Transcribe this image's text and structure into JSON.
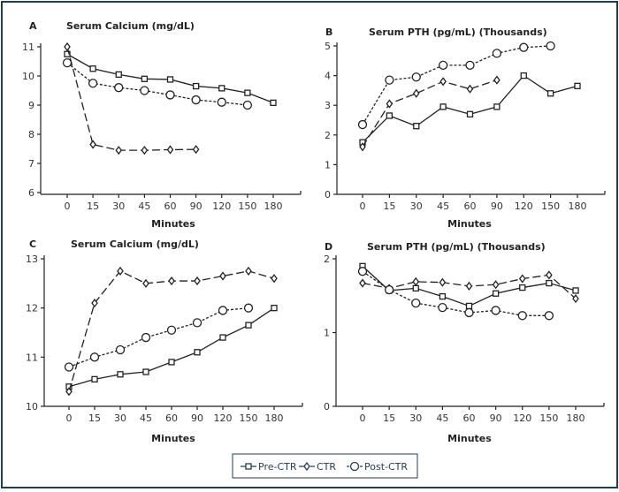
{
  "legend": {
    "items": [
      {
        "label": "Pre-CTR",
        "marker": "square",
        "dash": "solid"
      },
      {
        "label": "CTR",
        "marker": "diamond",
        "dash": "long-dash"
      },
      {
        "label": "Post-CTR",
        "marker": "circle",
        "dash": "short-dash"
      }
    ],
    "placement": "bottom-center"
  },
  "chart_data": [
    {
      "type": "line",
      "panel": "A",
      "title": "Serum Calcium (mg/dL)",
      "xlabel": "Minutes",
      "ylabel": "",
      "categories": [
        "0",
        "15",
        "30",
        "45",
        "60",
        "90",
        "120",
        "150",
        "180"
      ],
      "ylim": [
        6,
        11
      ],
      "yticks": [
        6,
        7,
        8,
        9,
        10,
        11
      ],
      "grid": false,
      "series": [
        {
          "name": "Pre-CTR",
          "values": [
            10.75,
            10.25,
            10.05,
            9.9,
            9.88,
            9.65,
            9.58,
            9.42,
            9.08
          ]
        },
        {
          "name": "CTR",
          "values": [
            11.0,
            7.65,
            7.45,
            7.45,
            7.47,
            7.48,
            null,
            null,
            null
          ]
        },
        {
          "name": "Post-CTR",
          "values": [
            10.45,
            9.75,
            9.6,
            9.5,
            9.35,
            9.18,
            9.1,
            9.0,
            null
          ]
        }
      ]
    },
    {
      "type": "line",
      "panel": "B",
      "title": "Serum PTH (pg/mL) (Thousands)",
      "xlabel": "Minutes",
      "ylabel": "",
      "categories": [
        "0",
        "15",
        "30",
        "45",
        "60",
        "90",
        "120",
        "150",
        "180"
      ],
      "ylim": [
        0,
        5
      ],
      "yticks": [
        0,
        1,
        2,
        3,
        4,
        5
      ],
      "grid": false,
      "series": [
        {
          "name": "Pre-CTR",
          "values": [
            1.75,
            2.65,
            2.3,
            2.95,
            2.7,
            2.95,
            4.0,
            3.4,
            3.65
          ]
        },
        {
          "name": "CTR",
          "values": [
            1.6,
            3.05,
            3.4,
            3.8,
            3.55,
            3.85,
            null,
            null,
            null
          ]
        },
        {
          "name": "Post-CTR",
          "values": [
            2.35,
            3.85,
            3.95,
            4.35,
            4.35,
            4.75,
            4.95,
            5.0,
            null
          ]
        }
      ]
    },
    {
      "type": "line",
      "panel": "C",
      "title": "Serum Calcium (mg/dL)",
      "xlabel": "Minutes",
      "ylabel": "",
      "categories": [
        "0",
        "15",
        "30",
        "45",
        "60",
        "90",
        "120",
        "150",
        "180"
      ],
      "ylim": [
        10,
        13
      ],
      "yticks": [
        10,
        11,
        12,
        13
      ],
      "grid": false,
      "series": [
        {
          "name": "Pre-CTR",
          "values": [
            10.4,
            10.55,
            10.65,
            10.7,
            10.9,
            11.1,
            11.4,
            11.65,
            12.0
          ]
        },
        {
          "name": "CTR",
          "values": [
            10.3,
            12.1,
            12.75,
            12.5,
            12.55,
            12.55,
            12.65,
            12.75,
            12.6
          ]
        },
        {
          "name": "Post-CTR",
          "values": [
            10.8,
            11.0,
            11.15,
            11.4,
            11.55,
            11.7,
            11.95,
            12.0,
            null
          ]
        }
      ]
    },
    {
      "type": "line",
      "panel": "D",
      "title": "Serum PTH (pg/mL) (Thousands)",
      "xlabel": "Minutes",
      "ylabel": "",
      "categories": [
        "0",
        "15",
        "30",
        "45",
        "60",
        "90",
        "120",
        "150",
        "180"
      ],
      "ylim": [
        0,
        2
      ],
      "yticks": [
        0,
        1,
        2
      ],
      "grid": false,
      "series": [
        {
          "name": "Pre-CTR",
          "values": [
            1.9,
            1.57,
            1.6,
            1.49,
            1.36,
            1.53,
            1.61,
            1.67,
            1.57
          ]
        },
        {
          "name": "CTR",
          "values": [
            1.67,
            1.6,
            1.69,
            1.68,
            1.63,
            1.65,
            1.73,
            1.78,
            1.46
          ]
        },
        {
          "name": "Post-CTR",
          "values": [
            1.83,
            1.58,
            1.4,
            1.34,
            1.27,
            1.3,
            1.23,
            1.23,
            null
          ]
        }
      ]
    }
  ]
}
